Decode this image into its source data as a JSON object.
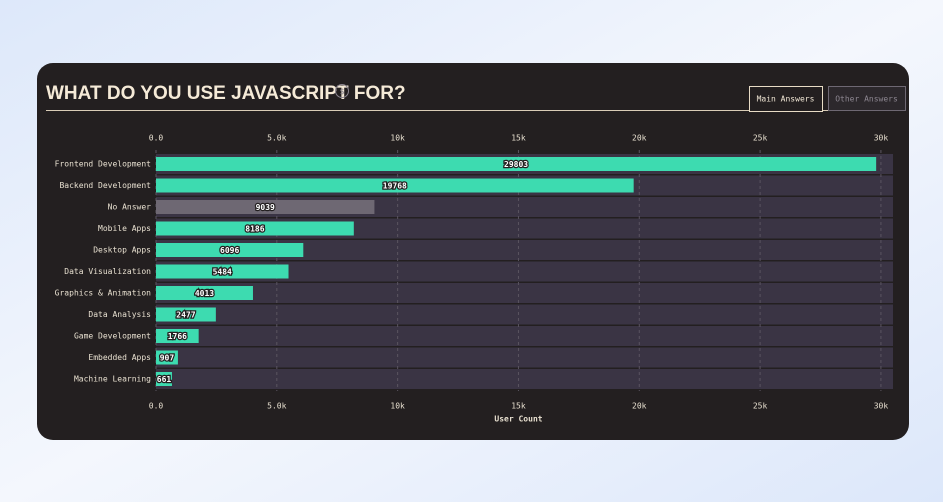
{
  "tabs": [
    "Main Answers",
    "Other Answers"
  ],
  "active_tab": 0,
  "chart_data": {
    "type": "bar",
    "orientation": "horizontal",
    "title": "WHAT DO YOU USE JAVASCRIPT FOR?",
    "categories": [
      "Frontend Development",
      "Backend Development",
      "No Answer",
      "Mobile Apps",
      "Desktop Apps",
      "Data Visualization",
      "Graphics & Animation",
      "Data Analysis",
      "Game Development",
      "Embedded Apps",
      "Machine Learning"
    ],
    "values": [
      29803,
      19768,
      9039,
      8186,
      6096,
      5484,
      4013,
      2477,
      1766,
      907,
      661
    ],
    "colors": [
      "#3ddbb0",
      "#3ddbb0",
      "#6e6873",
      "#3ddbb0",
      "#3ddbb0",
      "#3ddbb0",
      "#3ddbb0",
      "#3ddbb0",
      "#3ddbb0",
      "#3ddbb0",
      "#3ddbb0"
    ],
    "xlim": [
      0,
      30500
    ],
    "xticks": [
      {
        "value": 0,
        "label": "0.0"
      },
      {
        "value": 5000,
        "label": "5.0k"
      },
      {
        "value": 10000,
        "label": "10k"
      },
      {
        "value": 15000,
        "label": "15k"
      },
      {
        "value": 20000,
        "label": "20k"
      },
      {
        "value": 25000,
        "label": "25k"
      },
      {
        "value": 30000,
        "label": "30k"
      }
    ],
    "xlabel": "User Count",
    "grid": true
  }
}
